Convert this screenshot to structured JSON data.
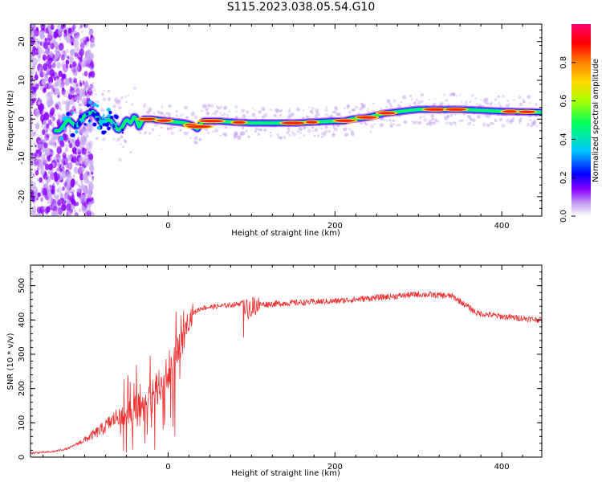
{
  "title": "S115.2023.038.05.54.G10",
  "chart_data": [
    {
      "type": "heatmap",
      "title": "S115.2023.038.05.54.G10",
      "xlabel": "Height of straight line (km)",
      "ylabel": "Frequency (Hz)",
      "xlim": [
        -165,
        448
      ],
      "ylim": [
        -25,
        24.5
      ],
      "xticks": [
        0,
        200,
        400
      ],
      "yticks": [
        -20,
        -10,
        0,
        10,
        20
      ],
      "colorbar": {
        "label": "Normalized spectral amplitude",
        "range": [
          0,
          1
        ],
        "ticks": [
          "0.0",
          "0.2",
          "0.4",
          "0.6",
          "0.8"
        ],
        "colors": [
          "#c8a8f0",
          "#8800ff",
          "#0000ff",
          "#00c8ff",
          "#00ff60",
          "#a8ff00",
          "#ffd800",
          "#ff8000",
          "#ff0000",
          "#ff0070"
        ]
      },
      "ridge": {
        "x": [
          -130,
          -120,
          -110,
          -100,
          -90,
          -80,
          -70,
          -60,
          -55,
          -50,
          -45,
          -40,
          -35,
          -30,
          -20,
          0,
          20,
          28,
          35,
          42,
          50,
          60,
          80,
          100,
          150,
          200,
          210,
          220,
          240,
          260,
          280,
          300,
          350,
          400,
          448
        ],
        "freq": [
          -3,
          0,
          -2,
          1,
          2,
          -1,
          0,
          -3,
          -2,
          0,
          -1,
          1,
          -2,
          0,
          0,
          -0.5,
          -1,
          -1.5,
          -2.5,
          -0.5,
          -0.5,
          -0.5,
          -0.8,
          -1,
          -1,
          -0.5,
          -0.5,
          0,
          0.5,
          1.5,
          2,
          2.5,
          2.5,
          2,
          1.8
        ]
      }
    },
    {
      "type": "line",
      "xlabel": "Height of straight line (km)",
      "ylabel": "SNR (10 * v/v)",
      "xlim": [
        -165,
        448
      ],
      "ylim": [
        0,
        560
      ],
      "xticks": [
        0,
        200,
        400
      ],
      "yticks": [
        0,
        100,
        200,
        300,
        400,
        500
      ],
      "series": [
        {
          "name": "SNR",
          "color": "#ee3030",
          "x": [
            -165,
            -140,
            -120,
            -100,
            -80,
            -60,
            -40,
            -20,
            0,
            10,
            20,
            30,
            40,
            60,
            80,
            90,
            95,
            100,
            110,
            150,
            200,
            250,
            300,
            340,
            350,
            370,
            400,
            448
          ],
          "y": [
            12,
            15,
            25,
            50,
            80,
            120,
            140,
            180,
            250,
            310,
            380,
            420,
            435,
            440,
            445,
            450,
            430,
            440,
            445,
            450,
            455,
            465,
            475,
            470,
            455,
            420,
            410,
            400
          ]
        }
      ]
    }
  ]
}
